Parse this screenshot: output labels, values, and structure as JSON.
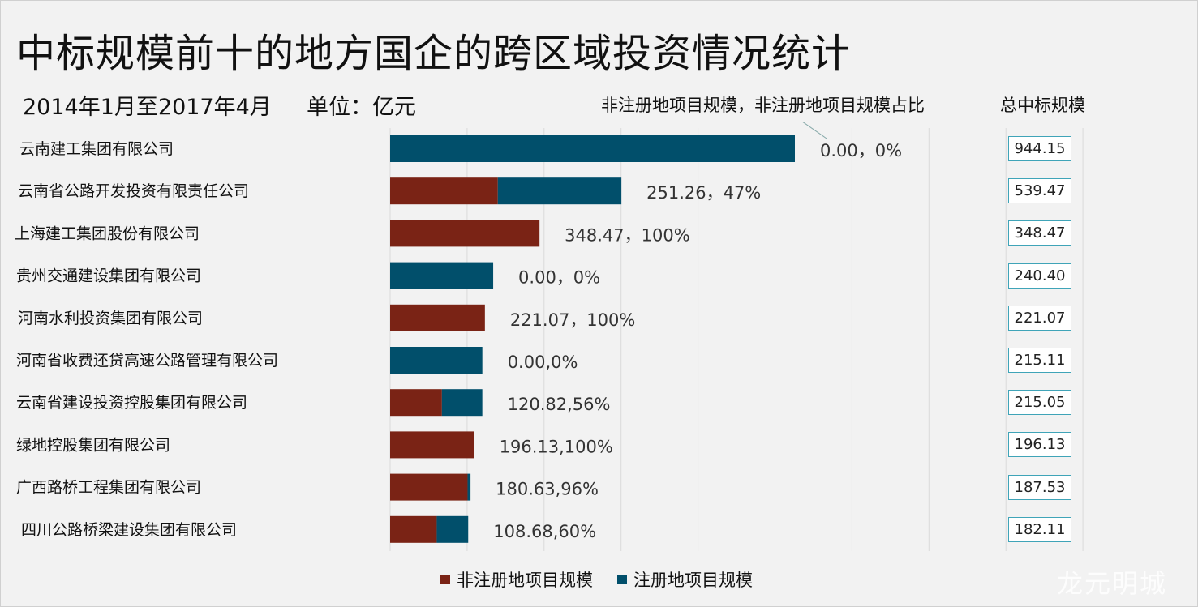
{
  "title": "中标规模前十的地方国企的跨区域投资情况统计",
  "subtitle": "2014年1月至2017年4月",
  "unit": "单位：亿元",
  "column_headers": {
    "non_registered": "非注册地项目规模，非注册地项目规模占比",
    "total": "总中标规模"
  },
  "legend": {
    "non_registered": "非注册地项目规模",
    "registered": "注册地项目规模"
  },
  "watermark": "龙元明城",
  "colors": {
    "non_registered": "#7a2315",
    "registered": "#014f6b",
    "total_border": "#3fa4b8",
    "background": "#f2f2f2"
  },
  "chart_data": {
    "type": "bar",
    "orientation": "horizontal",
    "stacked": true,
    "categories": [
      "云南建工集团有限公司",
      "云南省公路开发投资有限责任公司",
      "上海建工集团股份有限公司",
      "贵州交通建设集团有限公司",
      "河南水利投资集团有限公司",
      "河南省收费还贷高速公路管理有限公司",
      "云南省建设投资控股集团有限公司",
      "绿地控股集团有限公司",
      "广西路桥工程集团有限公司",
      "四川公路桥梁建设集团有限公司"
    ],
    "series": [
      {
        "name": "非注册地项目规模",
        "values": [
          0.0,
          251.26,
          348.47,
          0.0,
          221.07,
          0.0,
          120.82,
          196.13,
          180.63,
          108.68
        ]
      },
      {
        "name": "注册地项目规模",
        "values": [
          944.15,
          288.21,
          0.0,
          240.4,
          0.0,
          215.11,
          94.23,
          0.0,
          6.9,
          73.43
        ]
      }
    ],
    "data_labels": [
      "0.00，0%",
      "251.26，47%",
      "348.47，100%",
      "0.00，0%",
      "221.07，100%",
      "0.00,0%",
      "120.82,56%",
      "196.13,100%",
      "180.63,96%",
      "108.68,60%"
    ],
    "totals": [
      "944.15",
      "539.47",
      "348.47",
      "240.40",
      "221.07",
      "215.11",
      "215.05",
      "196.13",
      "187.53",
      "182.11"
    ],
    "xlim": [
      0,
      1800
    ],
    "grid": true,
    "legend_position": "bottom"
  }
}
